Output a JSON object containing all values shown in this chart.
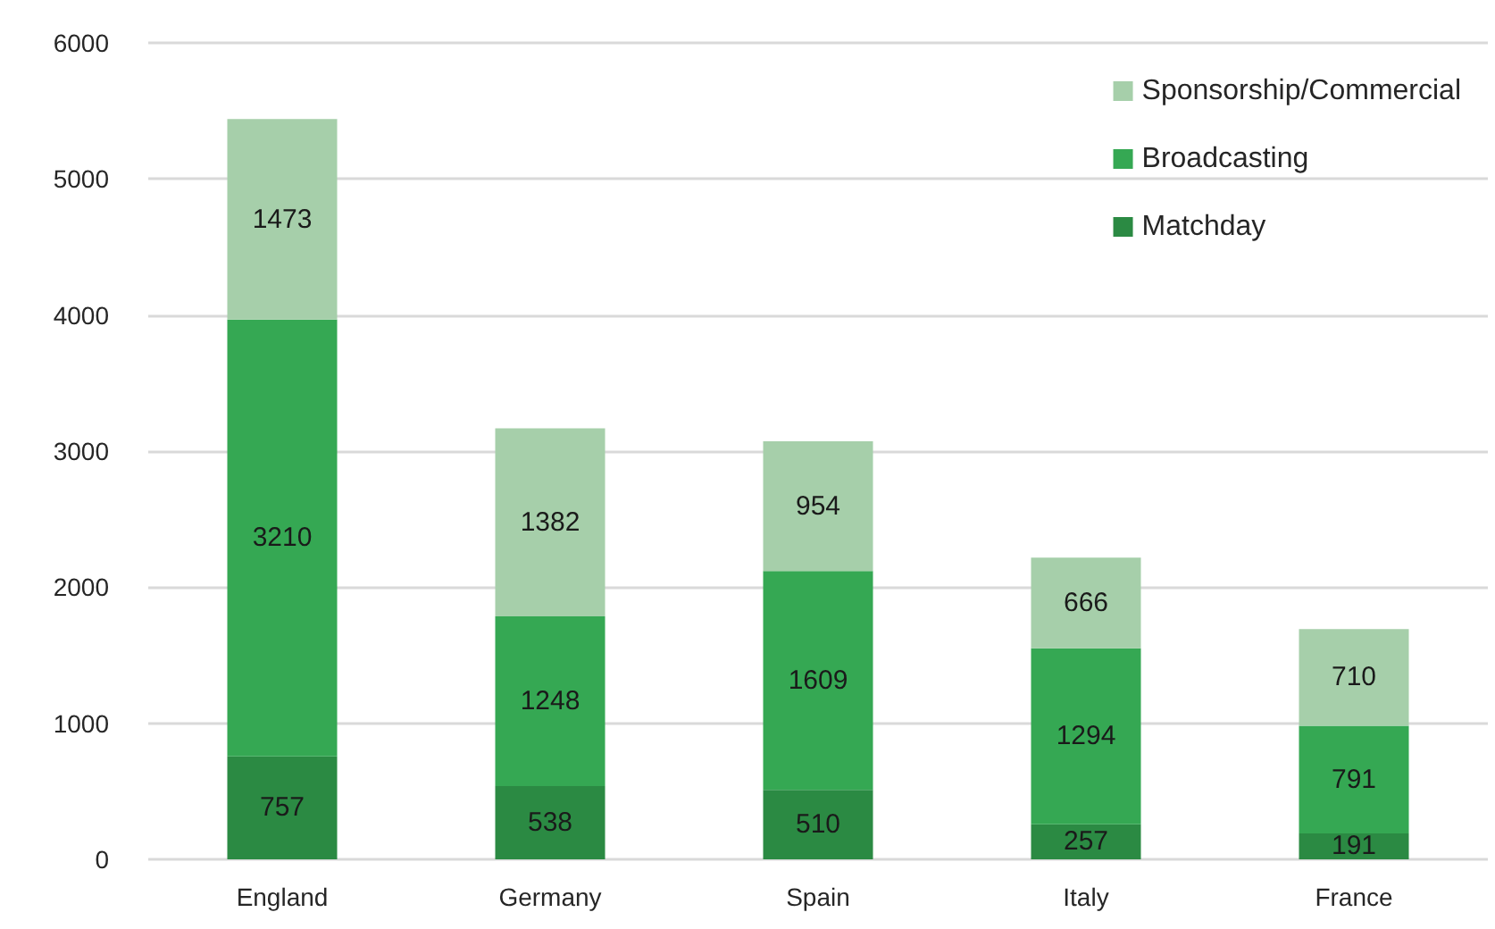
{
  "chart_data": {
    "type": "bar",
    "stacked": true,
    "categories": [
      "England",
      "Germany",
      "Spain",
      "Italy",
      "France"
    ],
    "series": [
      {
        "name": "Matchday",
        "color": "#2b8a43",
        "values": [
          757,
          538,
          510,
          257,
          191
        ]
      },
      {
        "name": "Broadcasting",
        "color": "#35a853",
        "values": [
          3210,
          1248,
          1609,
          1294,
          791
        ]
      },
      {
        "name": "Sponsorship/Commercial",
        "color": "#a6cfaa",
        "values": [
          1473,
          1382,
          954,
          666,
          710
        ]
      }
    ],
    "ylim": [
      0,
      6000
    ],
    "yticks": [
      0,
      1000,
      2000,
      3000,
      4000,
      5000,
      6000
    ],
    "grid": "y",
    "legend": "top right",
    "data_labels": true
  }
}
